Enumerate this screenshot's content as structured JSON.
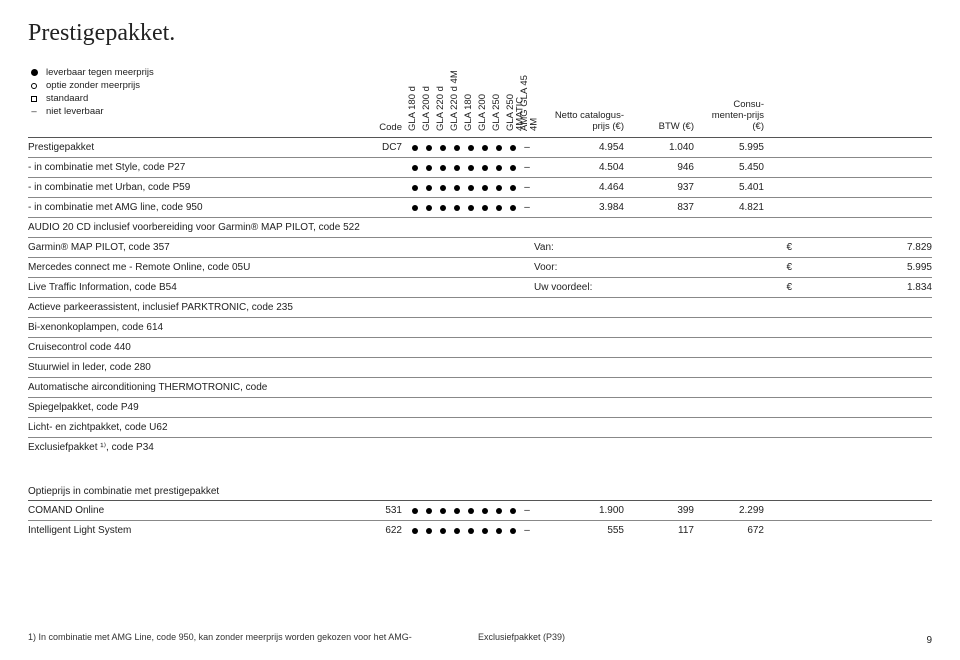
{
  "title": "Prestigepakket.",
  "legend": {
    "filled": "leverbaar tegen meerprijs",
    "open": "optie zonder meerprijs",
    "square": "standaard",
    "dash": "niet leverbaar"
  },
  "header": {
    "code": "Code",
    "cols": [
      "GLA 180 d",
      "GLA 200 d",
      "GLA 220 d",
      "GLA 220 d 4M",
      "GLA 180",
      "GLA 200",
      "GLA 250",
      "GLA 250 4MATIC",
      "AMG GLA 45 4M"
    ],
    "netto": "Netto catalogus-prijs (€)",
    "btw": "BTW (€)",
    "cons": "Consu-menten-prijs (€)"
  },
  "rows": [
    {
      "desc": "Prestigepakket",
      "code": "DC7",
      "av": [
        "d",
        "d",
        "d",
        "d",
        "d",
        "d",
        "d",
        "d",
        "-"
      ],
      "netto": "4.954",
      "btw": "1.040",
      "cons": "5.995"
    },
    {
      "desc": "- in combinatie met Style, code P27",
      "code": "",
      "av": [
        "d",
        "d",
        "d",
        "d",
        "d",
        "d",
        "d",
        "d",
        "-"
      ],
      "netto": "4.504",
      "btw": "946",
      "cons": "5.450"
    },
    {
      "desc": "- in combinatie met Urban, code P59",
      "code": "",
      "av": [
        "d",
        "d",
        "d",
        "d",
        "d",
        "d",
        "d",
        "d",
        "-"
      ],
      "netto": "4.464",
      "btw": "937",
      "cons": "5.401"
    },
    {
      "desc": "- in combinatie met AMG line, code 950",
      "code": "",
      "av": [
        "d",
        "d",
        "d",
        "d",
        "d",
        "d",
        "d",
        "d",
        "-"
      ],
      "netto": "3.984",
      "btw": "837",
      "cons": "4.821"
    }
  ],
  "plain_rows": [
    "AUDIO 20 CD inclusief voorbereiding voor Garmin® MAP PILOT, code 522"
  ],
  "labeled_rows": [
    {
      "desc": "Garmin® MAP PILOT, code 357",
      "label": "Van:",
      "cur": "€",
      "amt": "7.829"
    },
    {
      "desc": "Mercedes connect me - Remote Online, code 05U",
      "label": "Voor:",
      "cur": "€",
      "amt": "5.995"
    },
    {
      "desc": "Live Traffic Information, code B54",
      "label": "Uw voordeel:",
      "cur": "€",
      "amt": "1.834"
    }
  ],
  "trailing_rows": [
    "Actieve parkeerassistent, inclusief PARKTRONIC, code 235",
    "Bi-xenonkoplampen, code 614",
    "Cruisecontrol code 440",
    "Stuurwiel in leder, code 280",
    "Automatische airconditioning THERMOTRONIC, code",
    "Spiegelpakket, code P49",
    "Licht- en zichtpakket, code U62",
    "Exclusiefpakket ¹⁾, code P34"
  ],
  "section2_title": "Optieprijs in combinatie met prestigepakket",
  "rows2": [
    {
      "desc": "COMAND Online",
      "code": "531",
      "av": [
        "d",
        "d",
        "d",
        "d",
        "d",
        "d",
        "d",
        "d",
        "-"
      ],
      "netto": "1.900",
      "btw": "399",
      "cons": "2.299"
    },
    {
      "desc": "Intelligent Light System",
      "code": "622",
      "av": [
        "d",
        "d",
        "d",
        "d",
        "d",
        "d",
        "d",
        "d",
        "-"
      ],
      "netto": "555",
      "btw": "117",
      "cons": "672"
    }
  ],
  "footnote": {
    "left": "1) In combinatie met AMG Line, code 950, kan zonder meerprijs worden gekozen voor het AMG-",
    "right": "Exclusiefpakket (P39)"
  },
  "page_number": "9"
}
